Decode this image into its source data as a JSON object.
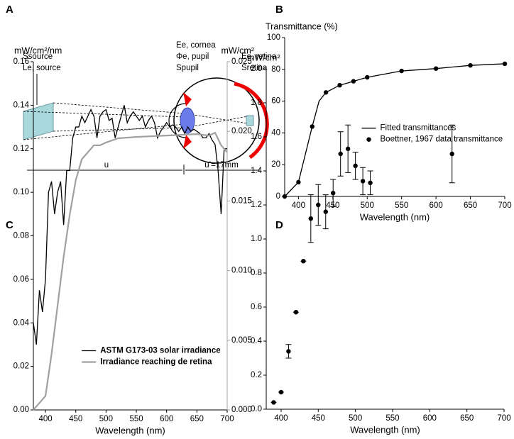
{
  "diagram": {
    "panel_label": "A",
    "source_area": "Ssource",
    "source_radiance": "Le, source",
    "cornea_irradiance": "Ee, cornea",
    "pupil_flux": "Φe, pupil",
    "pupil_area": "Spupil",
    "retina_irradiance": "Ee, retina",
    "retina_area": "Sretina",
    "distance": "u",
    "eye_length": "u’=17mm"
  },
  "chart_data": [
    {
      "type": "line",
      "panel_label": "B",
      "y_label": "Transmittance (%)",
      "x_label": "Wavelength (nm)",
      "xlim": [
        380,
        700
      ],
      "xticks": [
        400,
        450,
        500,
        550,
        600,
        650,
        700
      ],
      "ylim": [
        0,
        100
      ],
      "yticks": [
        0,
        20,
        40,
        60,
        80,
        100
      ],
      "legend": "center-right",
      "series": [
        {
          "name": "Fitted transmittances",
          "color": "#000000",
          "kind": "line",
          "x": [
            380,
            400,
            420,
            430,
            440,
            460,
            480,
            500,
            550,
            600,
            650,
            700
          ],
          "values": [
            0,
            9,
            44,
            60,
            65.5,
            70,
            72.5,
            75,
            79,
            80.5,
            82.5,
            83.5
          ]
        },
        {
          "name": "Boettner, 1967 data transmittance",
          "color": "#000000",
          "kind": "scatter",
          "x": [
            380,
            400,
            420,
            440,
            460,
            480,
            500,
            550,
            600,
            650,
            700
          ],
          "values": [
            0,
            9,
            44,
            65.5,
            70,
            72.5,
            75,
            79,
            80.5,
            82.5,
            83.5
          ]
        }
      ]
    },
    {
      "type": "line",
      "panel_label": "C",
      "y_label": "mW/cm²/nm",
      "y2_label": "mW/cm²",
      "x_label": "Wavelength (nm)",
      "xlim": [
        380,
        700
      ],
      "xticks": [
        400,
        450,
        500,
        550,
        600,
        650,
        700
      ],
      "ylim": [
        0,
        0.16
      ],
      "yticks": [
        {
          "value": 0,
          "label": "0.00"
        },
        {
          "value": 0.02,
          "label": "0.02"
        },
        {
          "value": 0.04,
          "label": "0.04"
        },
        {
          "value": 0.06,
          "label": "0.06"
        },
        {
          "value": 0.08,
          "label": "0.08"
        },
        {
          "value": 0.1,
          "label": "0.10"
        },
        {
          "value": 0.12,
          "label": "0.12"
        },
        {
          "value": 0.14,
          "label": "0.14"
        },
        {
          "value": 0.16,
          "label": "0.16"
        }
      ],
      "y2lim": [
        0,
        0.025
      ],
      "y2ticks": [
        {
          "value": 0,
          "label": "0.000"
        },
        {
          "value": 0.005,
          "label": "0.005"
        },
        {
          "value": 0.01,
          "label": "0.010"
        },
        {
          "value": 0.015,
          "label": "0.015"
        },
        {
          "value": 0.02,
          "label": "0.020"
        },
        {
          "value": 0.025,
          "label": "0.025"
        }
      ],
      "legend": "lower-center",
      "series": [
        {
          "name": "ASTM G173-03 solar irradiance",
          "color": "#000000",
          "kind": "line",
          "x": [
            380,
            385,
            390,
            395,
            400,
            405,
            410,
            415,
            420,
            425,
            430,
            435,
            440,
            445,
            450,
            455,
            460,
            465,
            470,
            475,
            480,
            485,
            490,
            495,
            500,
            505,
            510,
            515,
            520,
            525,
            530,
            535,
            540,
            545,
            550,
            555,
            560,
            565,
            570,
            575,
            580,
            585,
            590,
            595,
            600,
            605,
            610,
            615,
            620,
            625,
            630,
            635,
            640,
            645,
            650,
            655,
            660,
            665,
            670,
            675,
            680,
            685,
            690,
            695,
            700
          ],
          "values": [
            0.04,
            0.03,
            0.055,
            0.045,
            0.06,
            0.1,
            0.105,
            0.09,
            0.1,
            0.105,
            0.085,
            0.11,
            0.11,
            0.125,
            0.13,
            0.13,
            0.135,
            0.132,
            0.135,
            0.138,
            0.135,
            0.125,
            0.135,
            0.137,
            0.138,
            0.133,
            0.134,
            0.125,
            0.13,
            0.135,
            0.14,
            0.132,
            0.135,
            0.137,
            0.135,
            0.133,
            0.135,
            0.13,
            0.133,
            0.135,
            0.132,
            0.125,
            0.128,
            0.13,
            0.132,
            0.13,
            0.131,
            0.13,
            0.128,
            0.13,
            0.127,
            0.13,
            0.128,
            0.129,
            0.128,
            0.127,
            0.125,
            0.125,
            0.127,
            0.124,
            0.122,
            0.11,
            0.09,
            0.12,
            0.12
          ]
        },
        {
          "name": "Irradiance reaching de retina",
          "color": "#a0a0a0",
          "kind": "line",
          "axis": "y2",
          "x": [
            380,
            390,
            400,
            410,
            420,
            430,
            440,
            450,
            460,
            470,
            480,
            490,
            500,
            520,
            550,
            600,
            650,
            670,
            680,
            690,
            700
          ],
          "values": [
            0,
            0.0005,
            0.001,
            0.004,
            0.0075,
            0.011,
            0.014,
            0.0165,
            0.018,
            0.0185,
            0.019,
            0.019,
            0.0192,
            0.0195,
            0.0196,
            0.0197,
            0.0198,
            0.0197,
            0.0199,
            0.019,
            0.0185
          ]
        }
      ]
    },
    {
      "type": "scatter",
      "panel_label": "D",
      "y_label": "mW/cm²",
      "x_label": "Wavelength (nm)",
      "xlim": [
        380,
        700
      ],
      "xticks": [
        400,
        450,
        500,
        550,
        600,
        650,
        700
      ],
      "ylim": [
        0,
        2
      ],
      "yticks": [
        {
          "value": 0,
          "label": "0.0"
        },
        {
          "value": 0.2,
          "label": "0.2"
        },
        {
          "value": 0.4,
          "label": "0.4"
        },
        {
          "value": 0.6,
          "label": "0.6"
        },
        {
          "value": 0.8,
          "label": "0.8"
        },
        {
          "value": 1,
          "label": "1.0"
        },
        {
          "value": 1.2,
          "label": "1.2"
        },
        {
          "value": 1.4,
          "label": "1.4"
        },
        {
          "value": 1.6,
          "label": "1.6"
        },
        {
          "value": 1.8,
          "label": "1.8"
        },
        {
          "value": 2,
          "label": "2.0"
        }
      ],
      "series": [
        {
          "color": "#000000",
          "kind": "scatter",
          "x": [
            390,
            400,
            410,
            420,
            430,
            440,
            450,
            460,
            470,
            480,
            490,
            500,
            510,
            520,
            630
          ],
          "values": [
            0.04,
            0.1,
            0.34,
            0.57,
            0.87,
            1.12,
            1.2,
            1.16,
            1.27,
            1.5,
            1.53,
            1.43,
            1.34,
            1.33,
            1.5
          ],
          "errors": [
            0,
            0,
            0.04,
            0,
            0,
            0.14,
            0.12,
            0.1,
            0.08,
            0.13,
            0.14,
            0.08,
            0.08,
            0.07,
            0.17
          ]
        }
      ]
    }
  ]
}
